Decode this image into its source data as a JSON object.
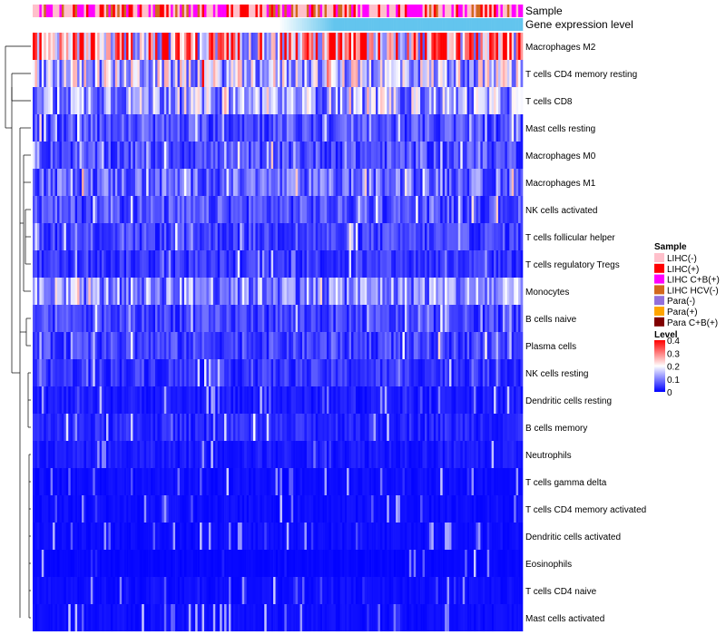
{
  "chart_data": {
    "type": "heatmap",
    "title": "",
    "column_annotations": [
      "Sample",
      "Gene expression level"
    ],
    "rows": [
      {
        "label": "Macrophages M2",
        "mean": 0.27
      },
      {
        "label": "T cells CD4 memory resting",
        "mean": 0.15
      },
      {
        "label": "T cells CD8",
        "mean": 0.13
      },
      {
        "label": "Mast cells resting",
        "mean": 0.06
      },
      {
        "label": "Macrophages M0",
        "mean": 0.06
      },
      {
        "label": "Macrophages M1",
        "mean": 0.08
      },
      {
        "label": "NK cells activated",
        "mean": 0.06
      },
      {
        "label": "T cells follicular helper",
        "mean": 0.05
      },
      {
        "label": "T cells regulatory  Tregs",
        "mean": 0.04
      },
      {
        "label": "Monocytes",
        "mean": 0.11
      },
      {
        "label": "B cells naive",
        "mean": 0.05
      },
      {
        "label": "Plasma cells",
        "mean": 0.05
      },
      {
        "label": "NK cells resting",
        "mean": 0.04
      },
      {
        "label": "Dendritic cells resting",
        "mean": 0.02
      },
      {
        "label": "B cells memory",
        "mean": 0.03
      },
      {
        "label": "Neutrophils",
        "mean": 0.02
      },
      {
        "label": "T cells gamma delta",
        "mean": 0.01
      },
      {
        "label": "T cells CD4 memory activated",
        "mean": 0.01
      },
      {
        "label": "Dendritic cells activated",
        "mean": 0.01
      },
      {
        "label": "Eosinophils",
        "mean": 0.005
      },
      {
        "label": "T cells CD4 naive",
        "mean": 0.01
      },
      {
        "label": "Mast cells activated",
        "mean": 0.01
      }
    ],
    "n_columns": 220,
    "sample_legend": {
      "title": "Sample",
      "items": [
        {
          "label": "LIHC(-)",
          "color": "#ffc0cb"
        },
        {
          "label": "LIHC(+)",
          "color": "#ff0000"
        },
        {
          "label": "LIHC C+B(+)",
          "color": "#ff00ff"
        },
        {
          "label": "LIHC HCV(-)",
          "color": "#d2691e"
        },
        {
          "label": "Para(-)",
          "color": "#9370db"
        },
        {
          "label": "Para(+)",
          "color": "#ffa500"
        },
        {
          "label": "Para C+B(+)",
          "color": "#800000"
        }
      ]
    },
    "sample_column_colors": [
      "#ffc0cb",
      "#ff00ff",
      "#d2691e",
      "#ffc0cb",
      "#ff0000",
      "#ffc0cb",
      "#ff00ff"
    ],
    "gene_expression": {
      "low": "#ffffff",
      "high": "#63c5ee"
    },
    "level_legend": {
      "title": "Level",
      "ticks": [
        0.4,
        0.3,
        0.2,
        0.1,
        0
      ],
      "tick_labels": [
        "0.4",
        "0.3",
        "0.2",
        "0.1",
        "0"
      ],
      "colors": {
        "low": "#0000ff",
        "mid": "#ffffff",
        "high": "#ff0000"
      },
      "range": [
        0,
        0.4
      ]
    }
  }
}
